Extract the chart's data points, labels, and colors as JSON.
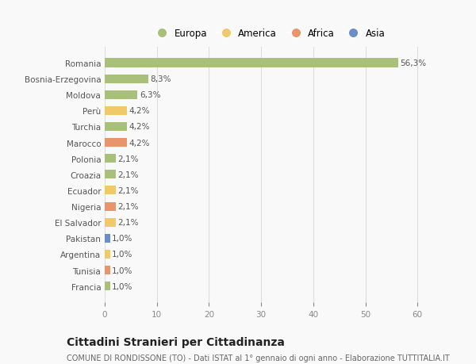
{
  "countries": [
    "Romania",
    "Bosnia-Erzegovina",
    "Moldova",
    "Perù",
    "Turchia",
    "Marocco",
    "Polonia",
    "Croazia",
    "Ecuador",
    "Nigeria",
    "El Salvador",
    "Pakistan",
    "Argentina",
    "Tunisia",
    "Francia"
  ],
  "values": [
    56.3,
    8.3,
    6.3,
    4.2,
    4.2,
    4.2,
    2.1,
    2.1,
    2.1,
    2.1,
    2.1,
    1.0,
    1.0,
    1.0,
    1.0
  ],
  "labels": [
    "56,3%",
    "8,3%",
    "6,3%",
    "4,2%",
    "4,2%",
    "4,2%",
    "2,1%",
    "2,1%",
    "2,1%",
    "2,1%",
    "2,1%",
    "1,0%",
    "1,0%",
    "1,0%",
    "1,0%"
  ],
  "continents": [
    "Europa",
    "Europa",
    "Europa",
    "America",
    "Europa",
    "Africa",
    "Europa",
    "Europa",
    "America",
    "Africa",
    "America",
    "Asia",
    "America",
    "Africa",
    "Europa"
  ],
  "colors": {
    "Europa": "#a8c07a",
    "America": "#f0c96a",
    "Africa": "#e8956d",
    "Asia": "#6a8fc8"
  },
  "xlim": [
    0,
    63
  ],
  "xticks": [
    0,
    10,
    20,
    30,
    40,
    50,
    60
  ],
  "title": "Cittadini Stranieri per Cittadinanza",
  "subtitle": "COMUNE DI RONDISSONE (TO) - Dati ISTAT al 1° gennaio di ogni anno - Elaborazione TUTTITALIA.IT",
  "background_color": "#f9f9f9",
  "bar_height": 0.55,
  "label_fontsize": 7.5,
  "ytick_fontsize": 7.5,
  "xtick_fontsize": 7.5,
  "title_fontsize": 10,
  "subtitle_fontsize": 7,
  "legend_fontsize": 8.5
}
